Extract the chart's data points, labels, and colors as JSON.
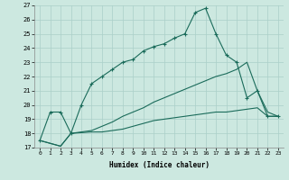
{
  "xlabel": "Humidex (Indice chaleur)",
  "xlim": [
    -0.5,
    23.5
  ],
  "ylim": [
    17,
    27
  ],
  "bg_color": "#cce8e0",
  "grid_color": "#aacfc8",
  "line_color": "#1a6b5a",
  "line1_x": [
    0,
    1,
    2,
    3,
    4,
    5,
    6,
    7,
    8,
    9,
    10,
    11,
    12,
    13,
    14,
    15,
    16,
    17,
    18,
    19,
    20,
    21,
    22,
    23
  ],
  "line1_y": [
    17.5,
    19.5,
    19.5,
    18.0,
    20.0,
    21.5,
    22.0,
    22.5,
    23.0,
    23.2,
    23.8,
    24.1,
    24.3,
    24.7,
    25.0,
    26.5,
    26.8,
    25.0,
    23.5,
    23.0,
    20.5,
    21.0,
    19.2,
    19.2
  ],
  "line2_x": [
    0,
    2,
    3,
    5,
    6,
    7,
    8,
    9,
    10,
    11,
    12,
    13,
    14,
    15,
    16,
    17,
    18,
    19,
    20,
    21,
    22,
    23
  ],
  "line2_y": [
    17.5,
    17.1,
    18.0,
    18.1,
    18.1,
    18.2,
    18.3,
    18.5,
    18.7,
    18.9,
    19.0,
    19.1,
    19.2,
    19.3,
    19.4,
    19.5,
    19.5,
    19.6,
    19.7,
    19.8,
    19.2,
    19.2
  ],
  "line3_x": [
    0,
    2,
    3,
    5,
    6,
    7,
    8,
    9,
    10,
    11,
    12,
    13,
    14,
    15,
    16,
    17,
    18,
    19,
    20,
    21,
    22,
    23
  ],
  "line3_y": [
    17.5,
    17.1,
    18.0,
    18.2,
    18.5,
    18.8,
    19.2,
    19.5,
    19.8,
    20.2,
    20.5,
    20.8,
    21.1,
    21.4,
    21.7,
    22.0,
    22.2,
    22.5,
    23.0,
    21.0,
    19.5,
    19.2
  ]
}
